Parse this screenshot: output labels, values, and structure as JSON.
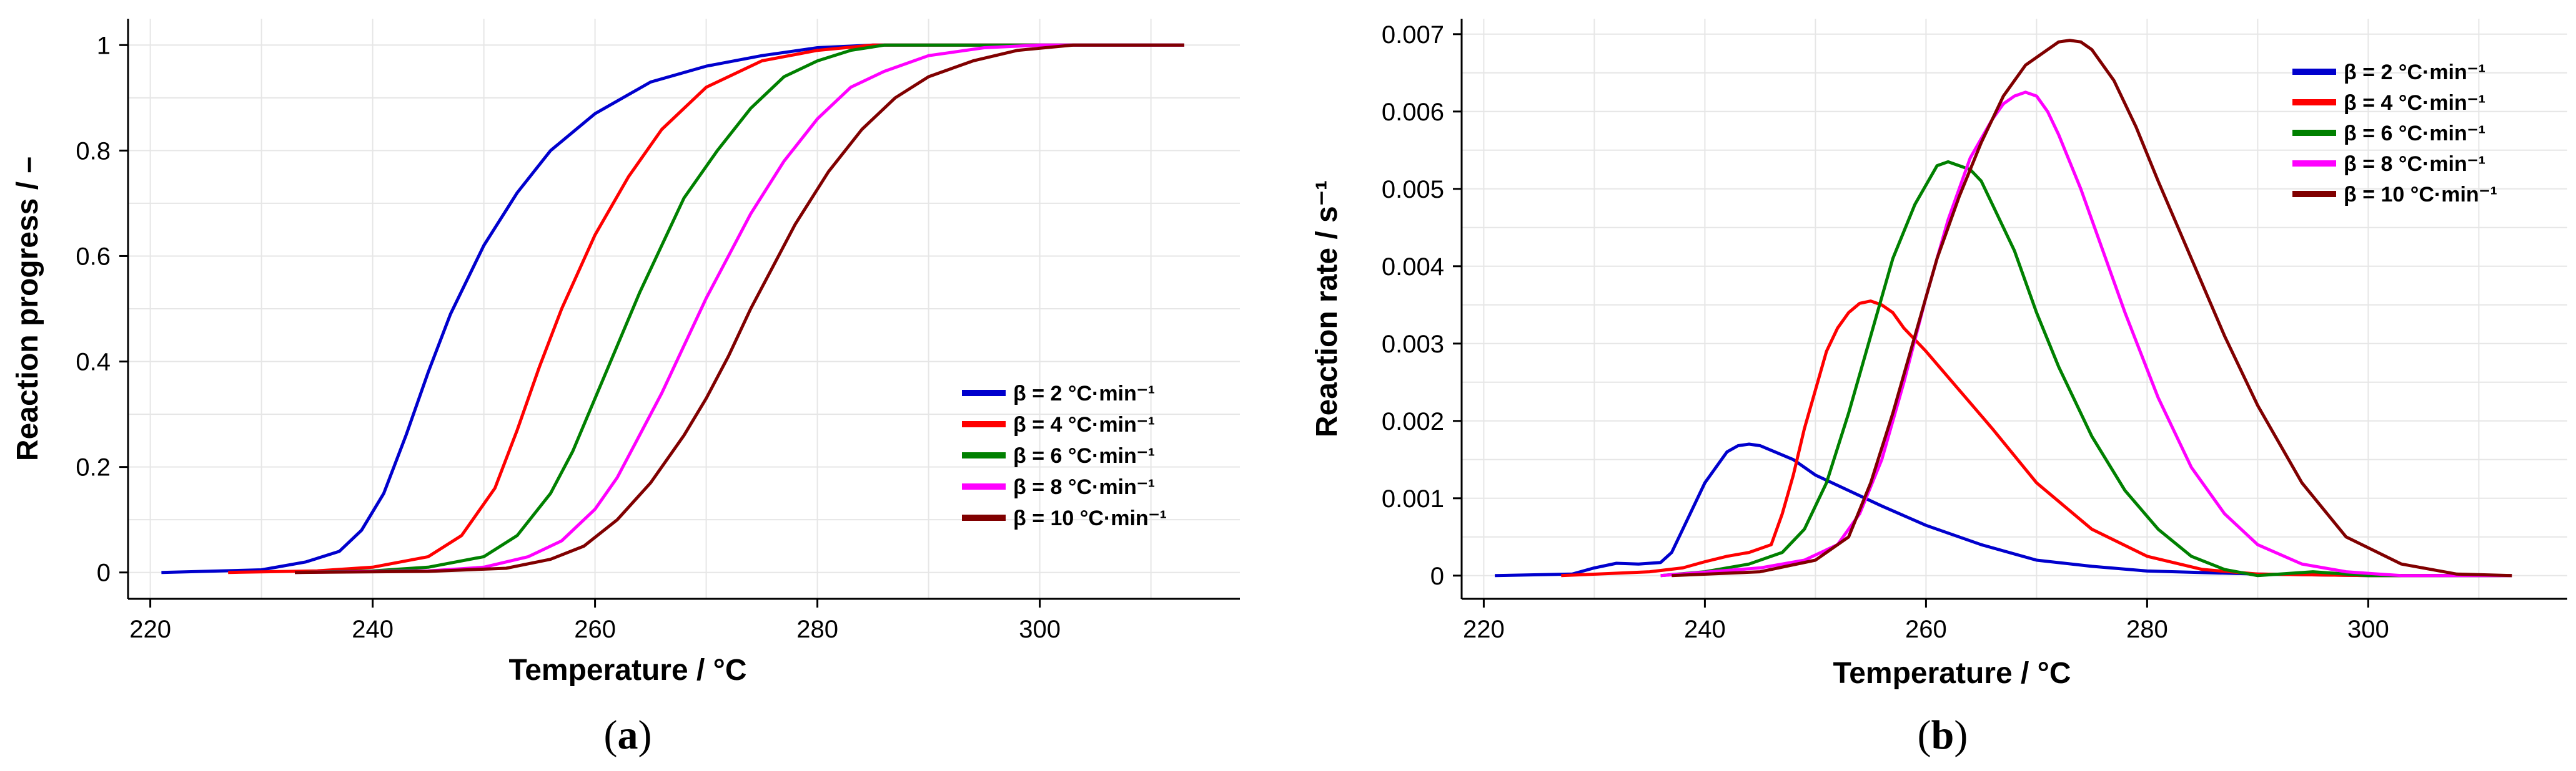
{
  "chart_data": [
    {
      "type": "line",
      "panel_label": "(a)",
      "panel_letter": "a",
      "xlabel": "Temperature / °C",
      "ylabel": "Reaction progress / –",
      "xlim": [
        218,
        318
      ],
      "ylim": [
        -0.05,
        1.05
      ],
      "xticks": [
        220,
        240,
        260,
        280,
        300
      ],
      "yticks": [
        0,
        0.2,
        0.4,
        0.6,
        0.8,
        1
      ],
      "ytick_labels": [
        "0",
        "0.2",
        "0.4",
        "0.6",
        "0.8",
        "1"
      ],
      "grid": true,
      "legend_position": "bottom-right",
      "series": [
        {
          "name": "β = 2 °C·min⁻¹",
          "color": "#0000CD",
          "x": [
            221,
            230,
            234,
            237,
            239,
            241,
            243,
            245,
            247,
            250,
            253,
            256,
            260,
            265,
            270,
            275,
            280,
            285,
            290,
            300,
            313
          ],
          "y": [
            0,
            0.005,
            0.02,
            0.04,
            0.08,
            0.15,
            0.26,
            0.38,
            0.49,
            0.62,
            0.72,
            0.8,
            0.87,
            0.93,
            0.96,
            0.98,
            0.995,
            1,
            1,
            1,
            1
          ]
        },
        {
          "name": "β = 4 °C·min⁻¹",
          "color": "#FF0000",
          "x": [
            227,
            235,
            240,
            245,
            248,
            251,
            253,
            255,
            257,
            260,
            263,
            266,
            270,
            275,
            280,
            285,
            290,
            300,
            313
          ],
          "y": [
            0,
            0.003,
            0.01,
            0.03,
            0.07,
            0.16,
            0.27,
            0.39,
            0.5,
            0.64,
            0.75,
            0.84,
            0.92,
            0.97,
            0.99,
            1,
            1,
            1,
            1
          ]
        },
        {
          "name": "β = 6 °C·min⁻¹",
          "color": "#008000",
          "x": [
            233,
            240,
            245,
            250,
            253,
            256,
            258,
            260,
            262,
            264,
            266,
            268,
            271,
            274,
            277,
            280,
            283,
            286,
            290,
            300,
            313
          ],
          "y": [
            0,
            0.003,
            0.01,
            0.03,
            0.07,
            0.15,
            0.23,
            0.33,
            0.43,
            0.53,
            0.62,
            0.71,
            0.8,
            0.88,
            0.94,
            0.97,
            0.99,
            1.0,
            1.0,
            1,
            1
          ]
        },
        {
          "name": "β = 8 °C·min⁻¹",
          "color": "#FF00FF",
          "x": [
            233,
            245,
            250,
            254,
            257,
            260,
            262,
            264,
            266,
            268,
            270,
            272,
            274,
            277,
            280,
            283,
            286,
            290,
            295,
            300,
            313
          ],
          "y": [
            0,
            0.003,
            0.01,
            0.03,
            0.06,
            0.12,
            0.18,
            0.26,
            0.34,
            0.43,
            0.52,
            0.6,
            0.68,
            0.78,
            0.86,
            0.92,
            0.95,
            0.98,
            0.995,
            1,
            1
          ]
        },
        {
          "name": "β = 10 °C·min⁻¹",
          "color": "#800000",
          "x": [
            233,
            245,
            252,
            256,
            259,
            262,
            265,
            268,
            270,
            272,
            274,
            276,
            278,
            281,
            284,
            287,
            290,
            294,
            298,
            303,
            313
          ],
          "y": [
            0,
            0.002,
            0.008,
            0.025,
            0.05,
            0.1,
            0.17,
            0.26,
            0.33,
            0.41,
            0.5,
            0.58,
            0.66,
            0.76,
            0.84,
            0.9,
            0.94,
            0.97,
            0.99,
            1,
            1
          ]
        }
      ]
    },
    {
      "type": "line",
      "panel_label": "(b)",
      "panel_letter": "b",
      "xlabel": "Temperature / °C",
      "ylabel": "Reaction rate / s⁻¹",
      "xlim": [
        218,
        318
      ],
      "ylim": [
        -0.0003,
        0.0072
      ],
      "xticks": [
        220,
        240,
        260,
        280,
        300
      ],
      "yticks": [
        0,
        0.001,
        0.002,
        0.003,
        0.004,
        0.005,
        0.006,
        0.007
      ],
      "ytick_labels": [
        "0",
        "0.001",
        "0.002",
        "0.003",
        "0.004",
        "0.005",
        "0.006",
        "0.007"
      ],
      "grid": true,
      "legend_position": "top-right",
      "series": [
        {
          "name": "β = 2 °C·min⁻¹",
          "color": "#0000CD",
          "x": [
            221,
            228,
            230,
            232,
            234,
            236,
            237,
            238,
            239,
            240,
            241,
            242,
            243,
            244,
            245,
            246,
            248,
            250,
            253,
            256,
            260,
            265,
            270,
            275,
            280,
            290,
            300,
            312
          ],
          "y": [
            0,
            2e-05,
            0.0001,
            0.00016,
            0.00015,
            0.00017,
            0.0003,
            0.0006,
            0.0009,
            0.0012,
            0.0014,
            0.0016,
            0.00168,
            0.0017,
            0.00168,
            0.00162,
            0.0015,
            0.0013,
            0.0011,
            0.0009,
            0.00065,
            0.0004,
            0.0002,
            0.00012,
            6e-05,
            2e-05,
            0,
            0
          ]
        },
        {
          "name": "β = 4 °C·min⁻¹",
          "color": "#FF0000",
          "x": [
            227,
            235,
            238,
            240,
            242,
            244,
            246,
            247,
            248,
            249,
            250,
            251,
            252,
            253,
            254,
            255,
            256,
            257,
            258,
            260,
            263,
            266,
            270,
            275,
            280,
            285,
            290,
            300,
            313
          ],
          "y": [
            0,
            5e-05,
            0.0001,
            0.00018,
            0.00025,
            0.0003,
            0.0004,
            0.0008,
            0.0013,
            0.0019,
            0.0024,
            0.0029,
            0.0032,
            0.0034,
            0.00352,
            0.00355,
            0.0035,
            0.0034,
            0.0032,
            0.0029,
            0.0024,
            0.0019,
            0.0012,
            0.0006,
            0.00025,
            8e-05,
            2e-05,
            0,
            0
          ]
        },
        {
          "name": "β = 6 °C·min⁻¹",
          "color": "#008000",
          "x": [
            236,
            240,
            244,
            247,
            249,
            251,
            253,
            255,
            257,
            259,
            261,
            262,
            263,
            264,
            265,
            266,
            268,
            270,
            272,
            275,
            278,
            281,
            284,
            287,
            290,
            295,
            300,
            313
          ],
          "y": [
            0,
            5e-05,
            0.00015,
            0.0003,
            0.0006,
            0.0012,
            0.0021,
            0.0031,
            0.0041,
            0.0048,
            0.0053,
            0.00535,
            0.0053,
            0.00525,
            0.0051,
            0.0048,
            0.0042,
            0.0034,
            0.0027,
            0.0018,
            0.0011,
            0.0006,
            0.00025,
            8e-05,
            0,
            5e-05,
            0,
            0
          ]
        },
        {
          "name": "β = 8 °C·min⁻¹",
          "color": "#FF00FF",
          "x": [
            236,
            245,
            249,
            252,
            254,
            256,
            258,
            260,
            262,
            264,
            266,
            267,
            268,
            269,
            270,
            271,
            272,
            274,
            276,
            278,
            281,
            284,
            287,
            290,
            294,
            298,
            303,
            313
          ],
          "y": [
            0,
            0.0001,
            0.0002,
            0.0004,
            0.0008,
            0.0015,
            0.0025,
            0.0036,
            0.0046,
            0.0054,
            0.0059,
            0.0061,
            0.0062,
            0.00625,
            0.0062,
            0.006,
            0.0057,
            0.005,
            0.0042,
            0.0034,
            0.0023,
            0.0014,
            0.0008,
            0.0004,
            0.00015,
            5e-05,
            0,
            0
          ]
        },
        {
          "name": "β = 10 °C·min⁻¹",
          "color": "#800000",
          "x": [
            237,
            245,
            250,
            253,
            255,
            257,
            259,
            261,
            263,
            265,
            267,
            269,
            271,
            272,
            273,
            274,
            275,
            277,
            279,
            281,
            284,
            287,
            290,
            294,
            298,
            303,
            308,
            313
          ],
          "y": [
            0,
            5e-05,
            0.0002,
            0.0005,
            0.0012,
            0.0021,
            0.0031,
            0.0041,
            0.0049,
            0.0056,
            0.0062,
            0.0066,
            0.0068,
            0.0069,
            0.00692,
            0.0069,
            0.0068,
            0.0064,
            0.0058,
            0.0051,
            0.0041,
            0.0031,
            0.0022,
            0.0012,
            0.0005,
            0.00015,
            2e-05,
            0
          ]
        }
      ]
    }
  ]
}
